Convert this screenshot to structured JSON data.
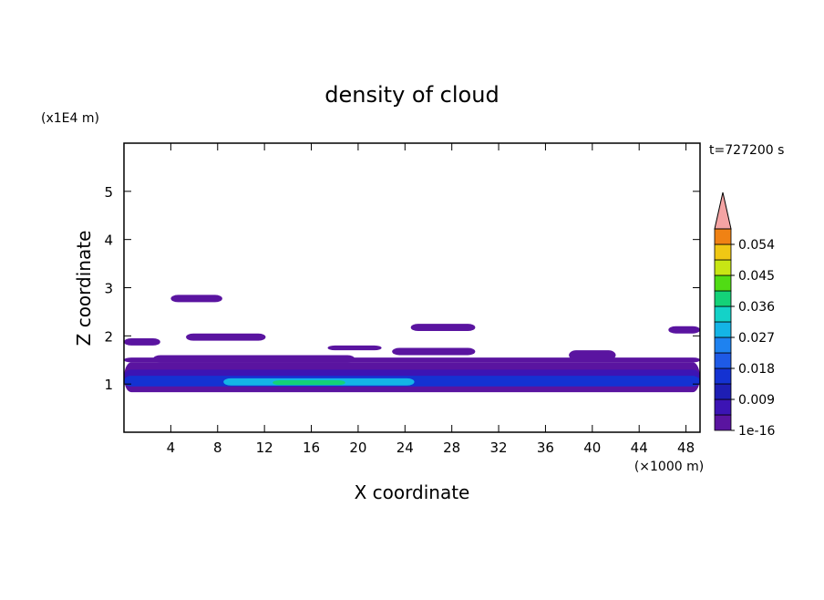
{
  "chart_data": {
    "type": "contour",
    "title": "density of cloud",
    "x_label": "X coordinate",
    "y_label": "Z coordinate",
    "x_unit": "(×1000 m)",
    "y_unit": "(x1E4 m)",
    "time_label": "t=727200 s",
    "xlim": [
      0,
      49.2
    ],
    "xticks": [
      4,
      8,
      12,
      16,
      20,
      24,
      28,
      32,
      36,
      40,
      44,
      48
    ],
    "ylim": [
      0,
      6
    ],
    "yticks": [
      1,
      2,
      3,
      4,
      5
    ],
    "colorbar": {
      "levels": [
        1e-16,
        0.0045,
        0.009,
        0.0135,
        0.018,
        0.0225,
        0.027,
        0.0315,
        0.036,
        0.0405,
        0.045,
        0.0495,
        0.054,
        0.0585
      ],
      "colors": [
        "#5a14a0",
        "#3c14b4",
        "#1e1eb4",
        "#1432d2",
        "#1e5ae6",
        "#1e82f0",
        "#14b4e6",
        "#14d2c8",
        "#14d278",
        "#50dc14",
        "#c8e614",
        "#f0c814",
        "#f08214"
      ],
      "extend_color": "#f4a4a4",
      "ticks": [
        1e-16,
        0.009,
        0.018,
        0.027,
        0.036,
        0.045,
        0.054
      ]
    },
    "regions": [
      {
        "x": [
          0,
          49.2
        ],
        "z": [
          0.83,
          1.45
        ],
        "value": 0.002
      },
      {
        "x": [
          2.5,
          19.7
        ],
        "z": [
          1.45,
          1.6
        ],
        "value": 0.002
      },
      {
        "x": [
          0,
          49.2
        ],
        "z": [
          1.45,
          1.55
        ],
        "value": 0.002
      },
      {
        "x": [
          4.0,
          8.4
        ],
        "z": [
          2.7,
          2.85
        ],
        "value": 0.002
      },
      {
        "x": [
          0,
          3.1
        ],
        "z": [
          1.8,
          1.95
        ],
        "value": 0.002
      },
      {
        "x": [
          5.3,
          12.1
        ],
        "z": [
          1.9,
          2.05
        ],
        "value": 0.002
      },
      {
        "x": [
          17.4,
          22.0
        ],
        "z": [
          1.7,
          1.8
        ],
        "value": 0.002
      },
      {
        "x": [
          22.9,
          30.0
        ],
        "z": [
          1.6,
          1.75
        ],
        "value": 0.002
      },
      {
        "x": [
          24.5,
          30.0
        ],
        "z": [
          2.1,
          2.25
        ],
        "value": 0.002
      },
      {
        "x": [
          46.5,
          49.2
        ],
        "z": [
          2.05,
          2.2
        ],
        "value": 0.002
      },
      {
        "x": [
          38.0,
          42.0
        ],
        "z": [
          1.5,
          1.7
        ],
        "value": 0.002
      },
      {
        "x": [
          0,
          49.2
        ],
        "z": [
          1.0,
          1.3
        ],
        "value": 0.006
      },
      {
        "x": [
          0,
          49.2
        ],
        "z": [
          0.95,
          1.17
        ],
        "value": 0.016
      },
      {
        "x": [
          8.5,
          24.8
        ],
        "z": [
          0.97,
          1.12
        ],
        "value": 0.028
      },
      {
        "x": [
          12.7,
          18.9
        ],
        "z": [
          0.98,
          1.08
        ],
        "value": 0.037
      }
    ]
  }
}
